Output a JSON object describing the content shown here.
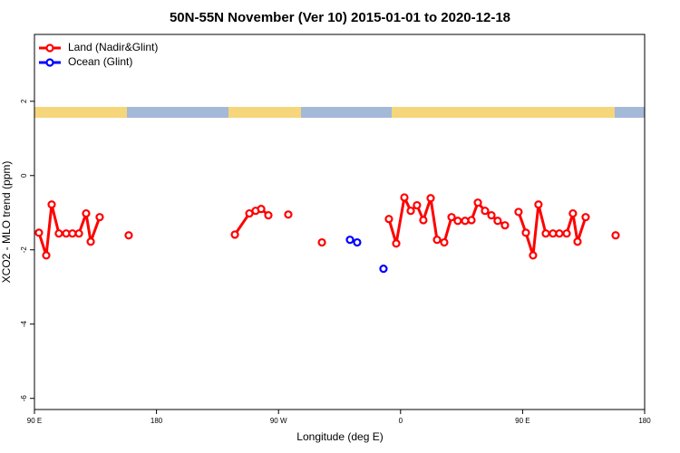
{
  "chart_data": {
    "type": "line",
    "title": "50N-55N November (Ver 10)   2015-01-01 to 2020-12-18",
    "x_label": "Longitude (deg E)",
    "y_label": "XCO2 - MLO trend (ppm)",
    "xlim": [
      90,
      540
    ],
    "xticks": [
      {
        "value": 90,
        "label": "90 E"
      },
      180,
      {
        "value": 270,
        "label": "90 W"
      },
      {
        "value": 360,
        "label": "0"
      },
      {
        "value": 450,
        "label": "90 E"
      },
      {
        "value": 540,
        "label": "180"
      }
    ],
    "ylim": [
      -6.3,
      3.8
    ],
    "yticks": [
      -6,
      -4,
      -2,
      0,
      2
    ],
    "legend": "top-left",
    "series": [
      {
        "name": "Land (Nadir&Glint)",
        "color": "#ff0000",
        "x": [
          93.3,
          98.7,
          102.7,
          108,
          113.4,
          118,
          122.8,
          128.1,
          131.5,
          138.1,
          null,
          159.5,
          null,
          237.8,
          248.5,
          253.1,
          257.2,
          262.5,
          null,
          277.2,
          null,
          302,
          null,
          351.4,
          356.8,
          362.8,
          367.5,
          372.1,
          376.8,
          382.2,
          386.9,
          392.2,
          397.6,
          402.2,
          407.6,
          412.3,
          417,
          422.3,
          427,
          431.6,
          437,
          null,
          447,
          452.4,
          457.7,
          461.7,
          467.1,
          472.4,
          477.1,
          482.5,
          487.1,
          490.5,
          496.5,
          null,
          518.6
        ],
        "values": [
          -1.54,
          -2.15,
          -0.78,
          -1.56,
          -1.56,
          -1.56,
          -1.56,
          -1.02,
          -1.78,
          -1.12,
          null,
          -1.61,
          null,
          -1.59,
          -1.02,
          -0.95,
          -0.9,
          -1.07,
          null,
          -1.05,
          null,
          -1.8,
          null,
          -1.17,
          -1.83,
          -0.59,
          -0.95,
          -0.8,
          -1.2,
          -0.61,
          -1.73,
          -1.8,
          -1.12,
          -1.22,
          -1.22,
          -1.2,
          -0.73,
          -0.95,
          -1.07,
          -1.22,
          -1.34,
          null,
          -0.98,
          -1.54,
          -2.15,
          -0.78,
          -1.56,
          -1.56,
          -1.56,
          -1.56,
          -1.02,
          -1.78,
          -1.12,
          null,
          -1.61
        ]
      },
      {
        "name": "Ocean (Glint)",
        "color": "#0000ff",
        "x": [
          322.7,
          328,
          null,
          347.4
        ],
        "values": [
          -1.73,
          -1.8,
          null,
          -2.51
        ]
      }
    ]
  }
}
